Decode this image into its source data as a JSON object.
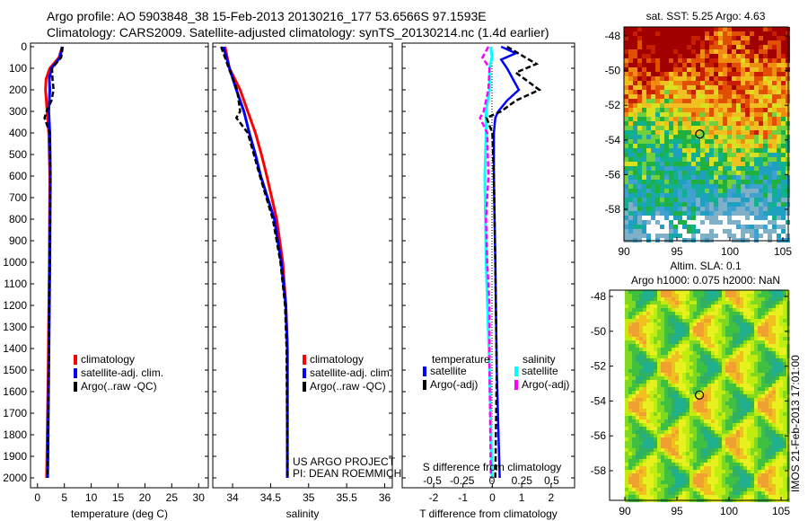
{
  "title_line1": "Argo profile: AO 5903848_38 15-Feb-2013 20130216_177 53.6566S 97.1593E",
  "title_line2": "Climatology: CARS2009. Satellite-adjusted climatology: synTS_20130214.nc (1.4d earlier)",
  "colors": {
    "climatology": "#ff0000",
    "satellite": "#0000ff",
    "argo": "#000000",
    "sal_satellite": "#00ffff",
    "sal_argo": "#ff00ff"
  },
  "chart_data": [
    {
      "type": "line",
      "panel": "temperature",
      "xlabel": "temperature (deg C)",
      "ylabel": "depth",
      "xlim": [
        -1.3,
        31.8
      ],
      "ylim": [
        2046,
        0
      ],
      "xticks": [
        "0",
        "5",
        "10",
        "15",
        "20",
        "25",
        "30"
      ],
      "yticks": [
        "0",
        "100",
        "200",
        "300",
        "400",
        "500",
        "600",
        "700",
        "800",
        "900",
        "1000",
        "1100",
        "1200",
        "1300",
        "1400",
        "1500",
        "1600",
        "1700",
        "1800",
        "1900",
        "2000"
      ],
      "legend": [
        "climatology",
        "satellite-adj. clim.",
        "Argo(..raw -QC)"
      ],
      "series": [
        {
          "name": "climatology",
          "depth": [
            0,
            50,
            100,
            150,
            200,
            300,
            400,
            600,
            1000,
            1500,
            2000
          ],
          "values": [
            4.6,
            4.0,
            2.3,
            1.6,
            1.5,
            1.8,
            2.1,
            2.3,
            2.2,
            2.0,
            1.7
          ]
        },
        {
          "name": "satellite-adj. clim.",
          "depth": [
            0,
            50,
            100,
            150,
            200,
            300,
            400,
            600,
            1000,
            1500,
            2000
          ],
          "values": [
            4.6,
            4.2,
            2.6,
            2.2,
            2.3,
            2.1,
            2.3,
            2.4,
            2.3,
            2.1,
            1.9
          ]
        },
        {
          "name": "Argo(..raw -QC)",
          "depth": [
            0,
            50,
            100,
            150,
            200,
            250,
            300,
            330,
            400,
            600,
            1000,
            1500,
            2000
          ],
          "values": [
            4.7,
            4.4,
            2.7,
            2.8,
            3.0,
            2.6,
            1.7,
            1.3,
            2.3,
            2.4,
            2.3,
            2.1,
            1.9
          ]
        }
      ]
    },
    {
      "type": "line",
      "panel": "salinity",
      "xlabel": "salinity",
      "xlim": [
        33.74,
        36.1
      ],
      "ylim": [
        2046,
        0
      ],
      "xticks": [
        "34",
        "34.5",
        "35",
        "35.5",
        "36"
      ],
      "legend": [
        "climatology",
        "satellite-adj. clim.",
        "Argo(..raw -QC)"
      ],
      "annotation": [
        "US ARGO PROJECT",
        "PI: DEAN ROEMMICH"
      ],
      "series": [
        {
          "name": "climatology",
          "depth": [
            0,
            100,
            200,
            300,
            400,
            500,
            600,
            800,
            1000,
            1200,
            1400,
            2000
          ],
          "values": [
            33.9,
            33.96,
            34.1,
            34.2,
            34.3,
            34.38,
            34.45,
            34.58,
            34.66,
            34.7,
            34.72,
            34.72
          ]
        },
        {
          "name": "satellite-adj. clim.",
          "depth": [
            0,
            100,
            200,
            300,
            400,
            500,
            600,
            800,
            1000,
            1200,
            1400,
            2000
          ],
          "values": [
            33.88,
            33.96,
            34.05,
            34.15,
            34.22,
            34.3,
            34.37,
            34.55,
            34.64,
            34.7,
            34.72,
            34.72
          ]
        },
        {
          "name": "Argo(..raw -QC)",
          "depth": [
            0,
            50,
            100,
            200,
            300,
            330,
            400,
            500,
            600,
            800,
            1000,
            1200,
            1400,
            2000
          ],
          "values": [
            33.85,
            33.9,
            33.95,
            34.06,
            34.1,
            34.05,
            34.2,
            34.28,
            34.36,
            34.53,
            34.63,
            34.69,
            34.71,
            34.72
          ]
        }
      ]
    },
    {
      "type": "line",
      "panel": "difference",
      "xlabel": "T difference from climatology",
      "x2label": "S difference from climatology",
      "xlim": [
        -3.07,
        2.8
      ],
      "ylim": [
        2046,
        0
      ],
      "xticks": [
        "-2",
        "-1",
        "0",
        "1",
        "2"
      ],
      "x2ticks": [
        "-0.5",
        "-0.25",
        "0",
        "0.25",
        "0.5"
      ],
      "legend_temperature": {
        "title": "temperature",
        "items": [
          "satellite",
          "Argo(-adj)"
        ]
      },
      "legend_salinity": {
        "title": "salinity",
        "items": [
          "satellite",
          "Argo(-adj)"
        ]
      },
      "series": [
        {
          "name": "T satellite",
          "depth": [
            0,
            30,
            60,
            100,
            150,
            200,
            250,
            300,
            330,
            400,
            600,
            1000,
            1500,
            2000
          ],
          "values": [
            0.3,
            0.8,
            0.3,
            0.5,
            0.7,
            0.9,
            0.5,
            0.2,
            0.1,
            0.05,
            0.05,
            0.1,
            0.15,
            0.25
          ]
        },
        {
          "name": "T Argo(-adj)",
          "depth": [
            0,
            40,
            80,
            120,
            160,
            200,
            250,
            300,
            330,
            400,
            600,
            1000,
            1500,
            2000
          ],
          "values": [
            0.5,
            1.0,
            1.5,
            0.8,
            1.2,
            1.6,
            0.8,
            0.3,
            -0.2,
            0.0,
            0.05,
            0.1,
            0.15,
            0.1
          ]
        },
        {
          "name": "S satellite",
          "depth": [
            0,
            50,
            100,
            200,
            300,
            400,
            600,
            1000,
            1500,
            2000
          ],
          "values": [
            -0.01,
            0.0,
            -0.02,
            -0.02,
            -0.05,
            -0.05,
            -0.06,
            -0.05,
            -0.02,
            0.0
          ]
        },
        {
          "name": "S Argo(-adj)",
          "depth": [
            0,
            50,
            100,
            200,
            300,
            330,
            400,
            600,
            800,
            1000,
            1200,
            1500,
            2000
          ],
          "values": [
            -0.03,
            -0.08,
            -0.02,
            -0.03,
            -0.07,
            -0.1,
            -0.04,
            -0.03,
            -0.05,
            -0.04,
            -0.02,
            -0.02,
            -0.01
          ]
        }
      ]
    },
    {
      "type": "heatmap",
      "panel": "sst_map",
      "title": "sat. SST: 5.25  Argo: 4.63",
      "xlim": [
        90,
        105.5
      ],
      "ylim": [
        -47.5,
        -59.8
      ],
      "xticks": [
        "90",
        "95",
        "100",
        "105"
      ],
      "yticks": [
        "-48",
        "-50",
        "-52",
        "-54",
        "-56",
        "-58"
      ],
      "marker": {
        "lon": 97.16,
        "lat": -53.66
      }
    },
    {
      "type": "heatmap",
      "panel": "sla_map",
      "title_line1": "Altim. SLA: 0.1",
      "title_line2": "Argo h1000: 0.075 h2000: NaN",
      "xlim": [
        88.7,
        105.6
      ],
      "ylim": [
        -47.3,
        -59.7
      ],
      "xticks": [
        "90",
        "95",
        "100",
        "105"
      ],
      "yticks": [
        "-48",
        "-50",
        "-52",
        "-54",
        "-56",
        "-58"
      ],
      "marker": {
        "lon": 97.16,
        "lat": -53.66
      },
      "side_label": "IMOS 21-Feb-2013 17:01:00"
    }
  ]
}
